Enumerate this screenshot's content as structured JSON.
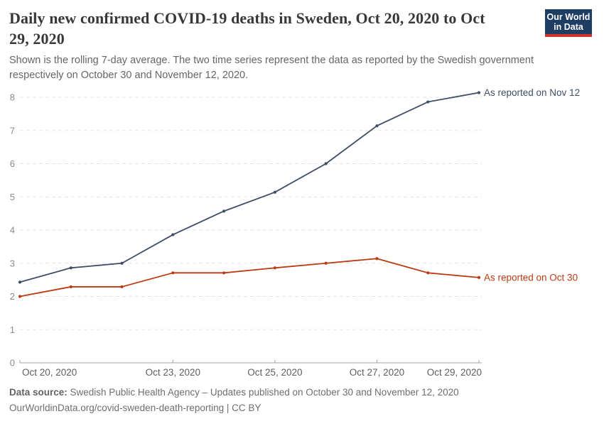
{
  "logo": {
    "line1": "Our World",
    "line2": "in Data",
    "bg_color": "#1d3d63",
    "bar_color": "#d0332b"
  },
  "chart_data": {
    "type": "line",
    "title": "Daily new confirmed COVID-19 deaths in Sweden, Oct 20, 2020 to Oct 29, 2020",
    "title_lines": [
      "Daily new confirmed COVID-19 deaths in Sweden, Oct 20, 2020 to Oct",
      "29, 2020"
    ],
    "subtitle": "Shown is the rolling 7-day average. The two time series represent the data as reported by the Swedish government respectively on October 30 and November 12, 2020.",
    "subtitle_lines": [
      "Shown is the rolling 7-day average. The two time series represent the data as reported by the Swedish government",
      "respectively on October 30 and November 12, 2020."
    ],
    "x": [
      "Oct 20, 2020",
      "Oct 21, 2020",
      "Oct 22, 2020",
      "Oct 23, 2020",
      "Oct 24, 2020",
      "Oct 25, 2020",
      "Oct 26, 2020",
      "Oct 27, 2020",
      "Oct 28, 2020",
      "Oct 29, 2020"
    ],
    "series": [
      {
        "name": "As reported on Nov 12",
        "color": "#3d4e66",
        "values": [
          2.43,
          2.86,
          3.0,
          3.86,
          4.57,
          5.14,
          6.0,
          7.14,
          7.86,
          8.14
        ]
      },
      {
        "name": "As reported on Oct 30",
        "color": "#bc3a12",
        "values": [
          2.0,
          2.29,
          2.29,
          2.71,
          2.71,
          2.86,
          3.0,
          3.14,
          2.71,
          2.57
        ]
      }
    ],
    "ylim": [
      0,
      8
    ],
    "yticks": [
      0,
      1,
      2,
      3,
      4,
      5,
      6,
      7,
      8
    ],
    "xtick_indices": [
      0,
      3,
      5,
      7,
      9
    ],
    "xtick_labels": [
      "Oct 20, 2020",
      "Oct 23, 2020",
      "Oct 25, 2020",
      "Oct 27, 2020",
      "Oct 29, 2020"
    ],
    "grid": "horizontal-dashed",
    "legend_position": "line-end-labels"
  },
  "footer": {
    "source_label": "Data source:",
    "source_text": " Swedish Public Health Agency – Updates published on October 30 and November 12, 2020",
    "link_line": "OurWorldinData.org/covid-sweden-death-reporting | CC BY"
  }
}
